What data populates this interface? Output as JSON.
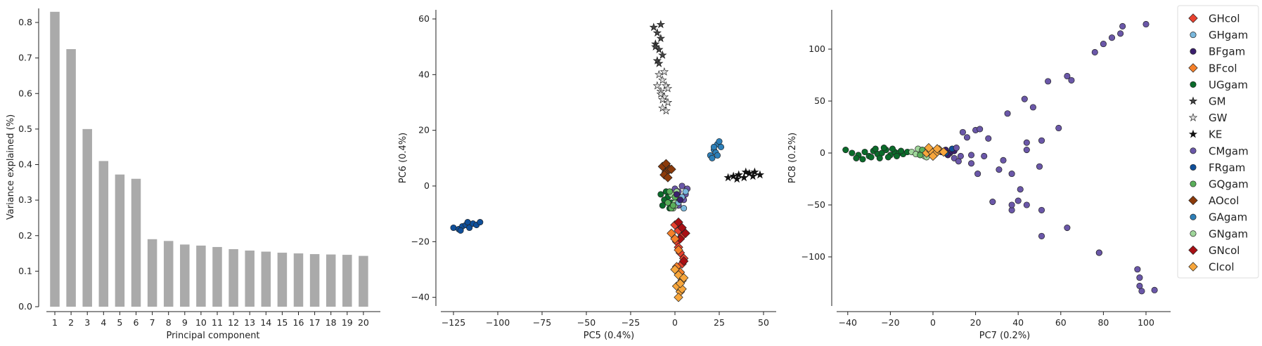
{
  "legend": {
    "placement": "right-outside",
    "entries": [
      {
        "label": "GHcol",
        "marker": "diamond",
        "color": "#e8412f"
      },
      {
        "label": "GHgam",
        "marker": "circle",
        "color": "#7ab8dd"
      },
      {
        "label": "BFgam",
        "marker": "circle",
        "color": "#3b1f6e"
      },
      {
        "label": "BFcol",
        "marker": "diamond",
        "color": "#f5802a"
      },
      {
        "label": "UGgam",
        "marker": "circle",
        "color": "#0a6b2a"
      },
      {
        "label": "GM",
        "marker": "star",
        "color": "#444444"
      },
      {
        "label": "GW",
        "marker": "star",
        "color": "#dddddd"
      },
      {
        "label": "KE",
        "marker": "star",
        "color": "#111111"
      },
      {
        "label": "CMgam",
        "marker": "circle",
        "color": "#6a57a8"
      },
      {
        "label": "FRgam",
        "marker": "circle",
        "color": "#0f4f9a"
      },
      {
        "label": "GQgam",
        "marker": "circle",
        "color": "#5aaf5a"
      },
      {
        "label": "AOcol",
        "marker": "diamond",
        "color": "#8b3a0a"
      },
      {
        "label": "GAgam",
        "marker": "circle",
        "color": "#2d7fb8"
      },
      {
        "label": "GNgam",
        "marker": "circle",
        "color": "#9fd69a"
      },
      {
        "label": "GNcol",
        "marker": "diamond",
        "color": "#a80f14"
      },
      {
        "label": "CIcol",
        "marker": "diamond",
        "color": "#f7a63c"
      }
    ]
  },
  "chart_data": [
    {
      "type": "bar",
      "xlabel": "Principal component",
      "ylabel": "Variance explained (%)",
      "ylim": [
        0,
        0.87
      ],
      "yticks": [
        0.0,
        0.1,
        0.2,
        0.3,
        0.4,
        0.5,
        0.6,
        0.7,
        0.8
      ],
      "ytick_labels": [
        "0.0",
        "0.1",
        "0.2",
        "0.3",
        "0.4",
        "0.5",
        "0.6",
        "0.7",
        "0.8"
      ],
      "categories": [
        "1",
        "2",
        "3",
        "4",
        "5",
        "6",
        "7",
        "8",
        "9",
        "10",
        "11",
        "12",
        "13",
        "14",
        "15",
        "16",
        "17",
        "18",
        "19",
        "20"
      ],
      "values": [
        0.83,
        0.725,
        0.5,
        0.41,
        0.372,
        0.36,
        0.19,
        0.185,
        0.175,
        0.172,
        0.168,
        0.162,
        0.158,
        0.155,
        0.152,
        0.15,
        0.148,
        0.147,
        0.146,
        0.143
      ],
      "bar_color": "#aaaaaa",
      "grid": false
    },
    {
      "type": "scatter",
      "xlabel": "PC5 (0.4%)",
      "ylabel": "PC6 (0.4%)",
      "xlim": [
        -135,
        57
      ],
      "ylim": [
        -44,
        63
      ],
      "xticks": [
        -125,
        -100,
        -75,
        -50,
        -25,
        0,
        25,
        50
      ],
      "xtick_labels": [
        "−125",
        "−100",
        "−75",
        "−50",
        "−25",
        "0",
        "25",
        "50"
      ],
      "yticks": [
        -40,
        -20,
        0,
        20,
        40,
        60
      ],
      "ytick_labels": [
        "−40",
        "−20",
        "0",
        "20",
        "40",
        "60"
      ],
      "grid": false,
      "series": [
        {
          "label": "FRgam",
          "x": [
            -125,
            -122,
            -120,
            -118,
            -116,
            -114,
            -112,
            -110,
            -117,
            -121
          ],
          "y": [
            -15,
            -15.5,
            -14.5,
            -14,
            -15,
            -13.5,
            -14,
            -13,
            -13,
            -16
          ]
        },
        {
          "label": "GM",
          "x": [
            -12,
            -10,
            -8,
            -11,
            -9,
            -7,
            -10,
            -8,
            -9,
            -11
          ],
          "y": [
            57,
            55,
            53,
            51,
            49,
            47,
            45,
            58,
            44,
            50
          ]
        },
        {
          "label": "GW",
          "x": [
            -9,
            -7,
            -5,
            -8,
            -6,
            -4,
            -10,
            -7,
            -5,
            -8,
            -6,
            -4,
            -7
          ],
          "y": [
            40,
            38,
            36,
            34,
            32,
            30,
            36,
            28,
            27,
            33,
            41,
            35,
            31
          ]
        },
        {
          "label": "KE",
          "x": [
            30,
            33,
            36,
            39,
            42,
            45,
            48,
            35,
            40,
            44
          ],
          "y": [
            3,
            3.5,
            4,
            3,
            4.5,
            5,
            4,
            2.5,
            5,
            3.5
          ]
        },
        {
          "label": "GAgam",
          "x": [
            20,
            22,
            24,
            26,
            23,
            21,
            25,
            22,
            24
          ],
          "y": [
            11,
            13,
            15,
            14,
            12,
            10,
            16,
            14,
            11
          ]
        },
        {
          "label": "AOcol",
          "x": [
            -7,
            -5,
            -3,
            -6,
            -4,
            -2,
            -5
          ],
          "y": [
            7,
            5,
            6,
            4,
            3,
            6,
            8
          ]
        },
        {
          "label": "UGgam",
          "x": [
            -8,
            -6,
            -4,
            -2,
            -7,
            -5,
            -3,
            -6
          ],
          "y": [
            -3,
            -5,
            -4,
            -6,
            -7,
            -2,
            -8,
            -5
          ]
        },
        {
          "label": "CMgam",
          "x": [
            0,
            2,
            4,
            6,
            3,
            1,
            5,
            7,
            2
          ],
          "y": [
            -1,
            -2,
            0,
            -3,
            -4,
            -6,
            -5,
            -1,
            -7
          ]
        },
        {
          "label": "GNgam",
          "x": [
            -2,
            0,
            2,
            -1,
            1,
            3,
            0
          ],
          "y": [
            -3,
            -6,
            -4,
            -8,
            -2,
            -5,
            -7
          ]
        },
        {
          "label": "GQgam",
          "x": [
            -4,
            -2,
            0,
            -3,
            -1
          ],
          "y": [
            -6,
            -8,
            -4,
            -2,
            -7
          ]
        },
        {
          "label": "GHgam",
          "x": [
            4,
            6,
            2,
            5
          ],
          "y": [
            -4,
            -2,
            -6,
            -8
          ]
        },
        {
          "label": "BFgam",
          "x": [
            1,
            3
          ],
          "y": [
            -3,
            -5
          ]
        },
        {
          "label": "GHcol",
          "x": [
            0,
            2,
            4,
            1,
            3,
            5,
            2,
            4
          ],
          "y": [
            -14,
            -16,
            -18,
            -20,
            -24,
            -26,
            -22,
            -28
          ]
        },
        {
          "label": "GNcol",
          "x": [
            2,
            4,
            6,
            3,
            5
          ],
          "y": [
            -13,
            -15,
            -17,
            -19,
            -27
          ]
        },
        {
          "label": "BFcol",
          "x": [
            -2,
            0,
            2,
            1,
            3
          ],
          "y": [
            -17,
            -19,
            -23,
            -29,
            -31
          ]
        },
        {
          "label": "CIcol",
          "x": [
            0,
            2,
            4,
            1,
            3,
            5,
            2,
            4,
            3
          ],
          "y": [
            -30,
            -32,
            -34,
            -36,
            -38,
            -33,
            -40,
            -37,
            -35
          ]
        }
      ]
    },
    {
      "type": "scatter",
      "xlabel": "PC7 (0.2%)",
      "ylabel": "PC8 (0.2%)",
      "xlim": [
        -47,
        112
      ],
      "ylim": [
        -150,
        140
      ],
      "xticks": [
        -40,
        -20,
        0,
        20,
        40,
        60,
        80,
        100
      ],
      "xtick_labels": [
        "−40",
        "−20",
        "0",
        "20",
        "40",
        "60",
        "80",
        "100"
      ],
      "yticks": [
        -100,
        -50,
        0,
        50,
        100
      ],
      "ytick_labels": [
        "−100",
        "−50",
        "0",
        "50",
        "100"
      ],
      "grid": false,
      "series": [
        {
          "label": "UGgam",
          "x": [
            -41,
            -38,
            -35,
            -32,
            -30,
            -28,
            -26,
            -24,
            -22,
            -20,
            -18,
            -16,
            -14,
            -12,
            -36,
            -33,
            -29,
            -25,
            -21,
            -17,
            -27,
            -23,
            -19,
            -15
          ],
          "y": [
            3,
            0,
            -2,
            1,
            -3,
            2,
            -1,
            0,
            3,
            -2,
            1,
            0,
            -1,
            1,
            -5,
            -6,
            -4,
            -5,
            -4,
            -3,
            4,
            5,
            4,
            2
          ]
        },
        {
          "label": "GNgam",
          "x": [
            -10,
            -8,
            -6,
            -4,
            -2,
            -7,
            -3
          ],
          "y": [
            1,
            -1,
            2,
            -3,
            0,
            4,
            -4
          ]
        },
        {
          "label": "GQgam",
          "x": [
            -6,
            -4,
            -2,
            -5
          ],
          "y": [
            -2,
            2,
            0,
            3
          ]
        },
        {
          "label": "BFgam",
          "x": [
            4,
            6,
            8,
            10,
            7
          ],
          "y": [
            1,
            3,
            0,
            2,
            -2
          ]
        },
        {
          "label": "FRgam",
          "x": [
            6,
            9
          ],
          "y": [
            0,
            4
          ]
        },
        {
          "label": "CIcol",
          "x": [
            -3,
            -1,
            1,
            3,
            5,
            0,
            2,
            -2
          ],
          "y": [
            0,
            2,
            -1,
            3,
            1,
            -3,
            4,
            5
          ]
        },
        {
          "label": "CMgam",
          "x": [
            14,
            20,
            22,
            24,
            26,
            33,
            35,
            37,
            40,
            43,
            44,
            44,
            47,
            50,
            51,
            54,
            59,
            63,
            65,
            76,
            78,
            80,
            84,
            88,
            89,
            100,
            28,
            31,
            41,
            37,
            37,
            44,
            51,
            51,
            63,
            78,
            96,
            97,
            97,
            98,
            104,
            10,
            12,
            16,
            18,
            13,
            21,
            11,
            18
          ],
          "y": [
            20,
            22,
            23,
            -3,
            14,
            -7,
            38,
            -55,
            -46,
            52,
            3,
            10,
            44,
            -13,
            -80,
            69,
            24,
            -72,
            70,
            97,
            -96,
            105,
            111,
            115,
            122,
            124,
            -47,
            -16,
            -35,
            -50,
            -20,
            -50,
            -55,
            12,
            74,
            -96,
            -112,
            -120,
            -128,
            -133,
            -132,
            -5,
            -8,
            15,
            -10,
            -3,
            -20,
            5,
            -2
          ]
        }
      ]
    }
  ]
}
